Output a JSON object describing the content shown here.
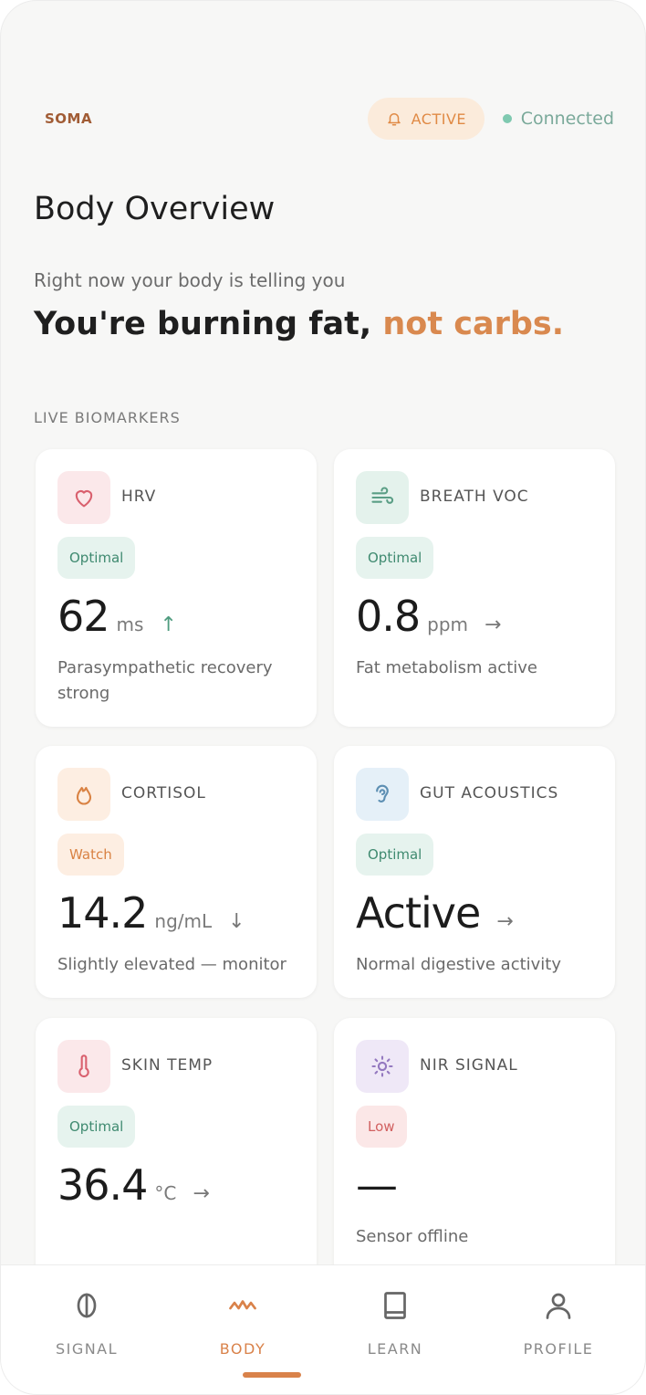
{
  "header": {
    "brand": "SOMA",
    "status_pill": "ACTIVE",
    "connection": "Connected"
  },
  "page": {
    "title": "Body Overview",
    "intro": "Right now your body is telling you",
    "headline_main": "You're burning fat, ",
    "headline_accent": "not carbs."
  },
  "section_label": "LIVE BIOMARKERS",
  "biomarkers": [
    {
      "label": "HRV",
      "icon": "heart-icon",
      "status": "Optimal",
      "value": "62",
      "unit": "ms",
      "trend": "↑",
      "description": "Parasympathetic recovery strong"
    },
    {
      "label": "BREATH VOC",
      "icon": "wind-icon",
      "status": "Optimal",
      "value": "0.8",
      "unit": "ppm",
      "trend": "→",
      "description": "Fat metabolism active"
    },
    {
      "label": "CORTISOL",
      "icon": "flame-icon",
      "status": "Watch",
      "value": "14.2",
      "unit": "ng/mL",
      "trend": "↓",
      "description": "Slightly elevated — monitor"
    },
    {
      "label": "GUT ACOUSTICS",
      "icon": "ear-icon",
      "status": "Optimal",
      "value": "Active",
      "unit": "",
      "trend": "→",
      "description": "Normal digestive activity"
    },
    {
      "label": "SKIN TEMP",
      "icon": "thermometer-icon",
      "status": "Optimal",
      "value": "36.4",
      "unit": "°C",
      "trend": "→",
      "description": ""
    },
    {
      "label": "NIR SIGNAL",
      "icon": "sun-icon",
      "status": "Low",
      "value": "—",
      "unit": "",
      "trend": "",
      "description": "Sensor offline"
    }
  ],
  "nav": [
    {
      "label": "SIGNAL",
      "icon": "signal-icon",
      "active": false
    },
    {
      "label": "BODY",
      "icon": "pulse-icon",
      "active": true
    },
    {
      "label": "LEARN",
      "icon": "book-icon",
      "active": false
    },
    {
      "label": "PROFILE",
      "icon": "user-icon",
      "active": false
    }
  ],
  "colors": {
    "accent": "#d9824a",
    "optimal": "#3f8a70",
    "watch": "#d98243",
    "low": "#d16060",
    "connected": "#7fc9b0"
  }
}
